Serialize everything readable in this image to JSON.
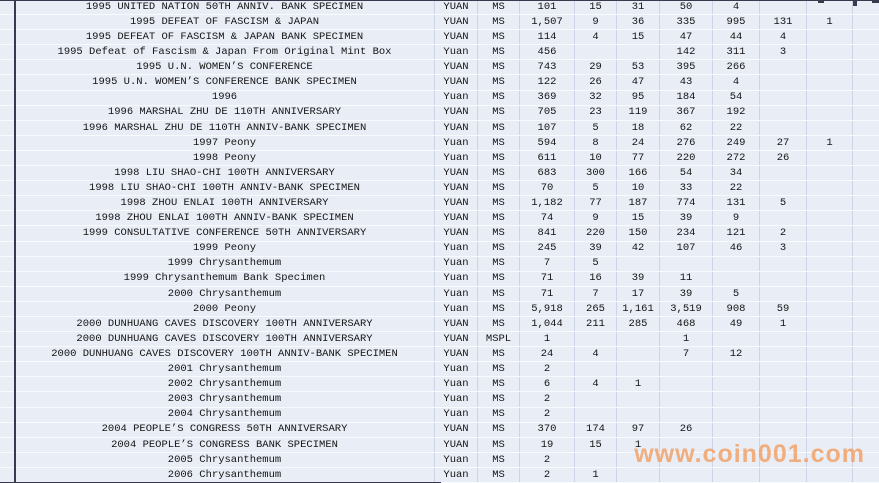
{
  "colors": {
    "cell_bg": "#e9edf6",
    "gridline": "#ccd3e6",
    "text": "#141414",
    "frame": "#3a3a4e",
    "watermark": "#f2a26a"
  },
  "watermark": {
    "text": "www.coin001.com"
  },
  "table": {
    "rows": [
      {
        "desc": "1995 UNITED NATION 50TH ANNIV. BANK SPECIMEN",
        "unit": "YUAN",
        "grade": "MS",
        "values": [
          "101",
          "15",
          "31",
          "50",
          "4",
          "",
          "",
          ""
        ]
      },
      {
        "desc": "1995 DEFEAT OF FASCISM & JAPAN",
        "unit": "YUAN",
        "grade": "MS",
        "values": [
          "1,507",
          "9",
          "36",
          "335",
          "995",
          "131",
          "1",
          ""
        ]
      },
      {
        "desc": "1995 DEFEAT OF FASCISM & JAPAN BANK SPECIMEN",
        "unit": "YUAN",
        "grade": "MS",
        "values": [
          "114",
          "4",
          "15",
          "47",
          "44",
          "4",
          "",
          ""
        ]
      },
      {
        "desc": "1995 Defeat of Fascism & Japan From Original Mint Box",
        "unit": "Yuan",
        "grade": "MS",
        "values": [
          "456",
          "",
          "",
          "142",
          "311",
          "3",
          "",
          ""
        ]
      },
      {
        "desc": "1995 U.N. WOMEN’S CONFERENCE",
        "unit": "YUAN",
        "grade": "MS",
        "values": [
          "743",
          "29",
          "53",
          "395",
          "266",
          "",
          "",
          ""
        ]
      },
      {
        "desc": "1995 U.N. WOMEN’S CONFERENCE BANK SPECIMEN",
        "unit": "YUAN",
        "grade": "MS",
        "values": [
          "122",
          "26",
          "47",
          "43",
          "4",
          "",
          "",
          ""
        ]
      },
      {
        "desc": "1996",
        "unit": "Yuan",
        "grade": "MS",
        "values": [
          "369",
          "32",
          "95",
          "184",
          "54",
          "",
          "",
          ""
        ]
      },
      {
        "desc": "1996 MARSHAL ZHU DE 110TH ANNIVERSARY",
        "unit": "YUAN",
        "grade": "MS",
        "values": [
          "705",
          "23",
          "119",
          "367",
          "192",
          "",
          "",
          ""
        ]
      },
      {
        "desc": "1996 MARSHAL ZHU DE 110TH ANNIV-BANK SPECIMEN",
        "unit": "YUAN",
        "grade": "MS",
        "values": [
          "107",
          "5",
          "18",
          "62",
          "22",
          "",
          "",
          ""
        ]
      },
      {
        "desc": "1997 Peony",
        "unit": "Yuan",
        "grade": "MS",
        "values": [
          "594",
          "8",
          "24",
          "276",
          "249",
          "27",
          "1",
          ""
        ]
      },
      {
        "desc": "1998 Peony",
        "unit": "Yuan",
        "grade": "MS",
        "values": [
          "611",
          "10",
          "77",
          "220",
          "272",
          "26",
          "",
          ""
        ]
      },
      {
        "desc": "1998 LIU SHAO-CHI 100TH ANNIVERSARY",
        "unit": "YUAN",
        "grade": "MS",
        "values": [
          "683",
          "300",
          "166",
          "54",
          "34",
          "",
          "",
          ""
        ]
      },
      {
        "desc": "1998 LIU SHAO-CHI 100TH ANNIV-BANK SPECIMEN",
        "unit": "YUAN",
        "grade": "MS",
        "values": [
          "70",
          "5",
          "10",
          "33",
          "22",
          "",
          "",
          ""
        ]
      },
      {
        "desc": "1998 ZHOU ENLAI 100TH ANNIVERSARY",
        "unit": "YUAN",
        "grade": "MS",
        "values": [
          "1,182",
          "77",
          "187",
          "774",
          "131",
          "5",
          "",
          ""
        ]
      },
      {
        "desc": "1998 ZHOU ENLAI 100TH ANNIV-BANK SPECIMEN",
        "unit": "YUAN",
        "grade": "MS",
        "values": [
          "74",
          "9",
          "15",
          "39",
          "9",
          "",
          "",
          ""
        ]
      },
      {
        "desc": "1999 CONSULTATIVE CONFERENCE 50TH ANNIVERSARY",
        "unit": "YUAN",
        "grade": "MS",
        "values": [
          "841",
          "220",
          "150",
          "234",
          "121",
          "2",
          "",
          ""
        ]
      },
      {
        "desc": "1999 Peony",
        "unit": "Yuan",
        "grade": "MS",
        "values": [
          "245",
          "39",
          "42",
          "107",
          "46",
          "3",
          "",
          ""
        ]
      },
      {
        "desc": "1999 Chrysanthemum",
        "unit": "Yuan",
        "grade": "MS",
        "values": [
          "7",
          "5",
          "",
          "",
          "",
          "",
          "",
          ""
        ]
      },
      {
        "desc": "1999 Chrysanthemum Bank Specimen",
        "unit": "Yuan",
        "grade": "MS",
        "values": [
          "71",
          "16",
          "39",
          "11",
          "",
          "",
          "",
          ""
        ]
      },
      {
        "desc": "2000 Chrysanthemum",
        "unit": "Yuan",
        "grade": "MS",
        "values": [
          "71",
          "7",
          "17",
          "39",
          "5",
          "",
          "",
          ""
        ]
      },
      {
        "desc": "2000 Peony",
        "unit": "Yuan",
        "grade": "MS",
        "values": [
          "5,918",
          "265",
          "1,161",
          "3,519",
          "908",
          "59",
          "",
          ""
        ]
      },
      {
        "desc": "2000 DUNHUANG CAVES DISCOVERY 100TH ANNIVERSARY",
        "unit": "YUAN",
        "grade": "MS",
        "values": [
          "1,044",
          "211",
          "285",
          "468",
          "49",
          "1",
          "",
          ""
        ]
      },
      {
        "desc": "2000 DUNHUANG CAVES DISCOVERY 100TH ANNIVERSARY",
        "unit": "YUAN",
        "grade": "MSPL",
        "values": [
          "1",
          "",
          "",
          "1",
          "",
          "",
          "",
          ""
        ]
      },
      {
        "desc": "2000 DUNHUANG CAVES DISCOVERY 100TH ANNIV-BANK SPECIMEN",
        "unit": "YUAN",
        "grade": "MS",
        "values": [
          "24",
          "4",
          "",
          "7",
          "12",
          "",
          "",
          ""
        ]
      },
      {
        "desc": "2001 Chrysanthemum",
        "unit": "Yuan",
        "grade": "MS",
        "values": [
          "2",
          "",
          "",
          "",
          "",
          "",
          "",
          ""
        ]
      },
      {
        "desc": "2002 Chrysanthemum",
        "unit": "Yuan",
        "grade": "MS",
        "values": [
          "6",
          "4",
          "1",
          "",
          "",
          "",
          "",
          ""
        ]
      },
      {
        "desc": "2003 Chrysanthemum",
        "unit": "Yuan",
        "grade": "MS",
        "values": [
          "2",
          "",
          "",
          "",
          "",
          "",
          "",
          ""
        ]
      },
      {
        "desc": "2004 Chrysanthemum",
        "unit": "Yuan",
        "grade": "MS",
        "values": [
          "2",
          "",
          "",
          "",
          "",
          "",
          "",
          ""
        ]
      },
      {
        "desc": "2004 PEOPLE’S CONGRESS 50TH ANNIVERSARY",
        "unit": "YUAN",
        "grade": "MS",
        "values": [
          "370",
          "174",
          "97",
          "26",
          "",
          "",
          "",
          ""
        ]
      },
      {
        "desc": "2004 PEOPLE’S CONGRESS BANK SPECIMEN",
        "unit": "YUAN",
        "grade": "MS",
        "values": [
          "19",
          "15",
          "1",
          "",
          "",
          "",
          "",
          ""
        ]
      },
      {
        "desc": "2005 Chrysanthemum",
        "unit": "Yuan",
        "grade": "MS",
        "values": [
          "2",
          "",
          "",
          "",
          "",
          "",
          "",
          ""
        ]
      },
      {
        "desc": "2006 Chrysanthemum",
        "unit": "Yuan",
        "grade": "MS",
        "values": [
          "2",
          "1",
          "",
          "",
          "",
          "",
          "",
          ""
        ]
      }
    ]
  }
}
